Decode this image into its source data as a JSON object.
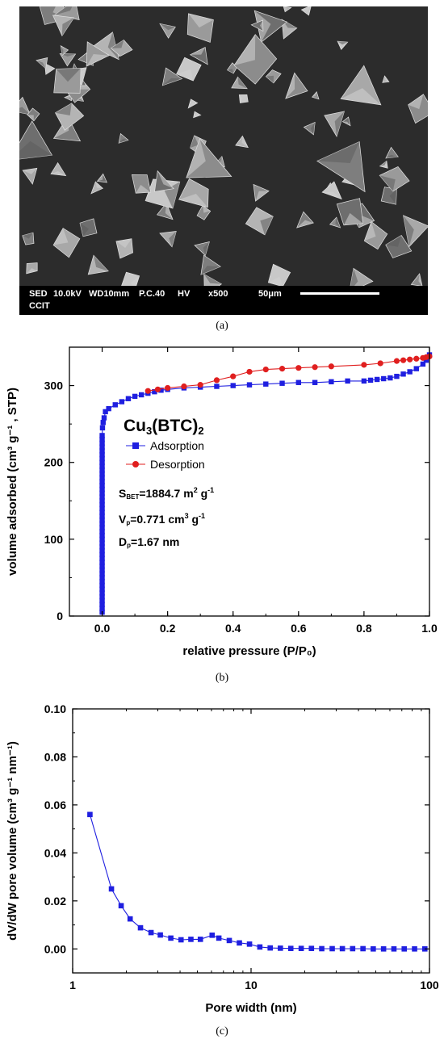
{
  "panels": [
    {
      "caption": "(a)",
      "sem_info": {
        "mode": "SED",
        "voltage": "10.0kV",
        "wd": "WD10mm",
        "pc": "P.C.40",
        "vac": "HV",
        "mag": "x500",
        "scale": "50μm",
        "org": "CCIT"
      }
    },
    {
      "caption": "(b)"
    },
    {
      "caption": "(c)"
    }
  ],
  "colors": {
    "adsorption": "#1f1fe0",
    "desorption": "#e01f1f",
    "axis": "#000000"
  },
  "chart_data": [
    {
      "type": "line",
      "title": "",
      "xlabel": "relative pressure (P/P₀)",
      "ylabel": "volume adsorbed  (cm³ g⁻¹ , STP)",
      "xlim": [
        -0.1,
        1.0
      ],
      "ylim": [
        0,
        350
      ],
      "xticks": [
        "0.0",
        "0.2",
        "0.4",
        "0.6",
        "0.8",
        "1.0"
      ],
      "yticks": [
        "0",
        "100",
        "200",
        "300"
      ],
      "legend_position": "upper-left",
      "annotations": {
        "formula_main": "Cu",
        "formula_sub": "3",
        "formula_rest": "(BTC)",
        "formula_sub2": "2",
        "sbet_main": "S",
        "sbet_sub": "BET",
        "sbet_val": "=1884.7 m",
        "sbet_sup": "2",
        "sbet_unit": " g",
        "sbet_sup2": "-1",
        "vp_main": "V",
        "vp_sub": "p",
        "vp_val": "=0.771 cm",
        "vp_sup": "3",
        "vp_unit": " g",
        "vp_sup2": "-1",
        "dp_main": "D",
        "dp_sub": "p",
        "dp_val": "=1.67 nm"
      },
      "series": [
        {
          "name": "Adsorption",
          "marker": "square",
          "x": [
            0.0,
            0.0,
            0.0,
            0.0,
            0.0,
            0.0,
            0.0,
            0.0,
            0.0,
            0.0,
            0.0,
            0.0,
            0.0,
            0.0,
            0.0,
            0.0,
            0.0,
            0.0,
            0.0,
            0.0,
            0.0,
            0.0,
            0.0,
            0.0,
            0.0,
            0.0,
            0.0,
            0.0,
            0.0,
            0.0,
            0.0,
            0.0,
            0.0,
            0.0,
            0.0,
            0.0,
            0.0,
            0.0,
            0.0,
            0.0,
            0.0,
            0.0,
            0.0,
            0.0,
            0.0,
            0.0,
            0.0,
            0.001,
            0.003,
            0.006,
            0.01,
            0.02,
            0.04,
            0.06,
            0.08,
            0.1,
            0.12,
            0.14,
            0.16,
            0.18,
            0.2,
            0.25,
            0.3,
            0.35,
            0.4,
            0.45,
            0.5,
            0.55,
            0.6,
            0.65,
            0.7,
            0.75,
            0.8,
            0.82,
            0.84,
            0.86,
            0.88,
            0.9,
            0.92,
            0.94,
            0.96,
            0.98,
            0.99,
            1.0
          ],
          "y": [
            5,
            10,
            15,
            20,
            25,
            30,
            35,
            40,
            45,
            50,
            55,
            60,
            65,
            70,
            75,
            80,
            85,
            90,
            95,
            100,
            105,
            110,
            115,
            120,
            125,
            130,
            135,
            140,
            145,
            150,
            155,
            160,
            165,
            170,
            175,
            180,
            185,
            190,
            195,
            200,
            205,
            210,
            215,
            220,
            225,
            230,
            235,
            245,
            252,
            258,
            266,
            270,
            275,
            279,
            283,
            286,
            288,
            290,
            292,
            294,
            295,
            297,
            298,
            299,
            300,
            301,
            302,
            303,
            304,
            304,
            305,
            306,
            306,
            307,
            308,
            309,
            310,
            312,
            315,
            318,
            322,
            328,
            333,
            340
          ]
        },
        {
          "name": "Desorption",
          "marker": "circle",
          "x": [
            1.0,
            0.99,
            0.98,
            0.96,
            0.94,
            0.92,
            0.9,
            0.85,
            0.8,
            0.7,
            0.65,
            0.6,
            0.55,
            0.5,
            0.45,
            0.4,
            0.35,
            0.3,
            0.25,
            0.2,
            0.17,
            0.14
          ],
          "y": [
            338,
            337,
            336,
            335,
            334,
            333,
            332,
            329,
            327,
            325,
            324,
            323,
            322,
            321,
            318,
            312,
            307,
            301,
            299,
            297,
            295,
            293
          ]
        }
      ]
    },
    {
      "type": "line",
      "title": "",
      "xlabel": "Pore width (nm)",
      "ylabel": "dV/dW pore volume (cm³ g⁻¹ nm⁻¹)",
      "xscale": "log",
      "xlim": [
        1,
        100
      ],
      "ylim": [
        -0.01,
        0.1
      ],
      "xticks": [
        "1",
        "10",
        "100"
      ],
      "yticks": [
        "0.00",
        "0.02",
        "0.04",
        "0.06",
        "0.08",
        "0.10"
      ],
      "series": [
        {
          "name": "",
          "marker": "square",
          "x": [
            1.25,
            1.65,
            1.87,
            2.1,
            2.4,
            2.75,
            3.1,
            3.55,
            4.05,
            4.6,
            5.2,
            6.05,
            6.6,
            7.55,
            8.6,
            9.8,
            11.2,
            12.8,
            14.6,
            16.7,
            19.1,
            21.8,
            24.9,
            28.5,
            32.5,
            37.1,
            42.4,
            48.4,
            55.3,
            63.2,
            72.2,
            82.5,
            94.2
          ],
          "y": [
            0.056,
            0.025,
            0.018,
            0.0125,
            0.0088,
            0.0068,
            0.0058,
            0.0045,
            0.0038,
            0.004,
            0.004,
            0.0057,
            0.0045,
            0.0035,
            0.0025,
            0.002,
            0.0008,
            0.0004,
            0.0003,
            0.0002,
            0.0002,
            0.0002,
            0.0001,
            0.0001,
            0.0001,
            0.0001,
            0.0001,
            0.0,
            0.0,
            0.0,
            0.0,
            0.0,
            0.0
          ]
        }
      ]
    }
  ]
}
